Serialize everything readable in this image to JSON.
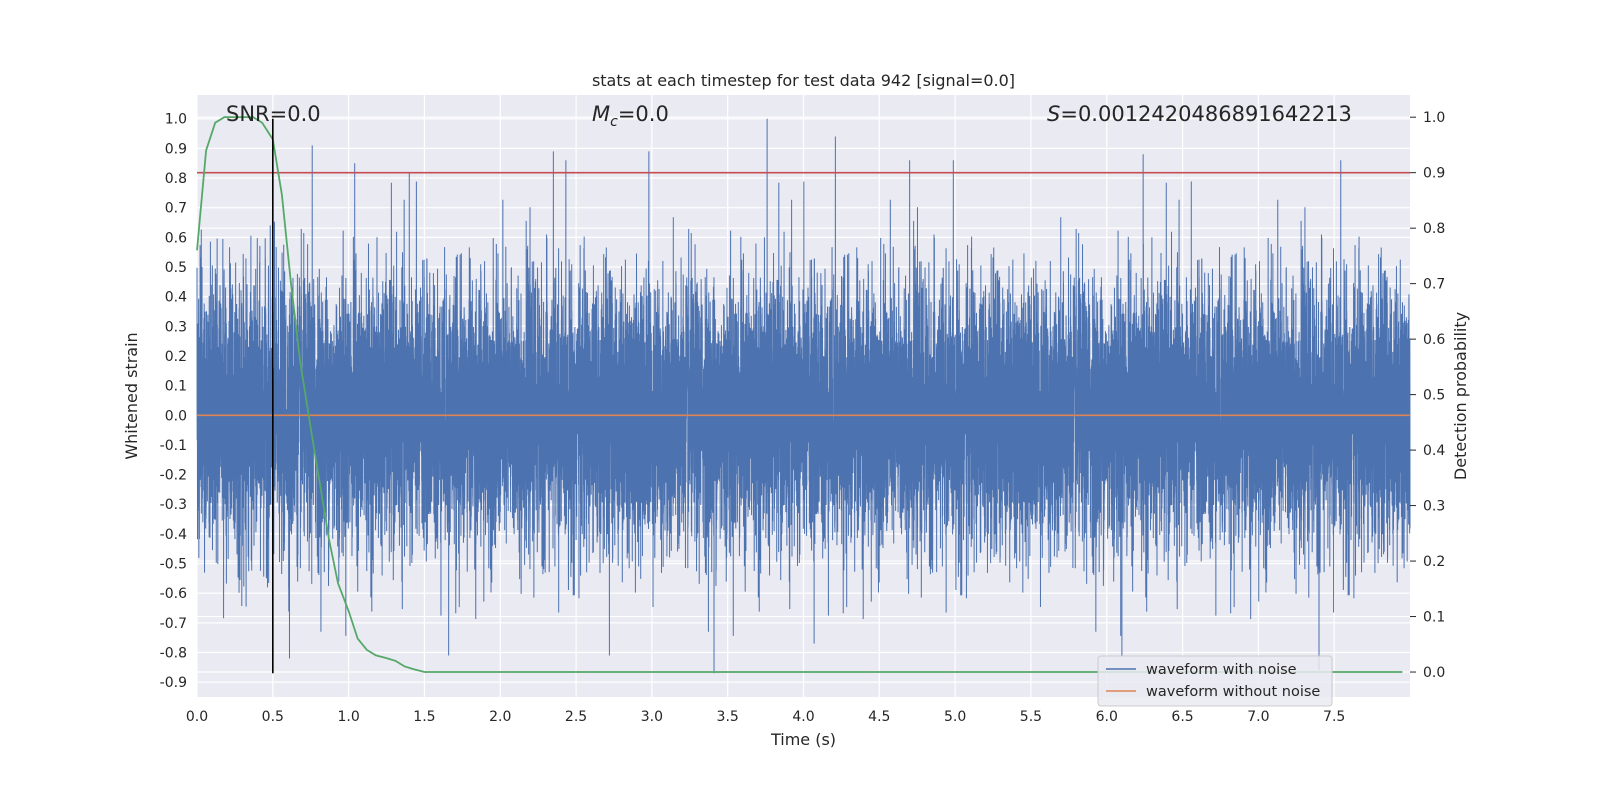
{
  "chart_data": {
    "type": "line",
    "title": "stats at each timestep for test data 942 [signal=0.0]",
    "xlabel": "Time (s)",
    "ylabel": "Whitened strain",
    "y2label": "Detection probability",
    "xlim": [
      0.0,
      8.0
    ],
    "ylim": [
      -0.95,
      1.08
    ],
    "y2lim": [
      -0.045,
      1.04
    ],
    "x_ticks": [
      "0.0",
      "0.5",
      "1.0",
      "1.5",
      "2.0",
      "2.5",
      "3.0",
      "3.5",
      "4.0",
      "4.5",
      "5.0",
      "5.5",
      "6.0",
      "6.5",
      "7.0",
      "7.5"
    ],
    "y_ticks": [
      "1.0",
      "0.9",
      "0.8",
      "0.7",
      "0.6",
      "0.5",
      "0.4",
      "0.3",
      "0.2",
      "0.1",
      "0.0",
      "-0.1",
      "-0.2",
      "-0.3",
      "-0.4",
      "-0.5",
      "-0.6",
      "-0.7",
      "-0.8",
      "-0.9"
    ],
    "y2_ticks": [
      "1.0",
      "0.9",
      "0.8",
      "0.7",
      "0.6",
      "0.5",
      "0.4",
      "0.3",
      "0.2",
      "0.1",
      "0.0"
    ],
    "grid": true,
    "legend_position": "lower-right",
    "annotations": {
      "snr": "SNR=0.0",
      "mc_symbol": "M",
      "mc_sub": "c",
      "mc_value": "=0.0",
      "s_symbol": "S",
      "s_value": "=0.001242048689164221​3"
    },
    "series": [
      {
        "name": "waveform with noise",
        "color": "#4c72b0",
        "axis": "left",
        "generated": "dense noise, 2048 samples/s over 8 s",
        "noise_sigma": 0.22,
        "peaks": [
          {
            "x": 3.76,
            "y": 1.0
          },
          {
            "x": 4.21,
            "y": 0.94
          },
          {
            "x": 0.76,
            "y": 0.91
          },
          {
            "x": 2.98,
            "y": 0.89
          },
          {
            "x": 2.35,
            "y": 0.89
          },
          {
            "x": 6.24,
            "y": 0.88
          },
          {
            "x": 4.7,
            "y": 0.86
          },
          {
            "x": 1.04,
            "y": 0.85
          },
          {
            "x": 1.4,
            "y": 0.82
          },
          {
            "x": 3.41,
            "y": -0.87
          },
          {
            "x": 7.4,
            "y": -0.86
          },
          {
            "x": 0.61,
            "y": -0.82
          },
          {
            "x": 2.72,
            "y": -0.81
          },
          {
            "x": 1.66,
            "y": -0.81
          },
          {
            "x": 6.1,
            "y": -0.81
          },
          {
            "x": 4.07,
            "y": -0.77
          },
          {
            "x": 1.92,
            "y": 0.09
          }
        ]
      },
      {
        "name": "waveform without noise",
        "color": "#dd8452",
        "axis": "left",
        "x": [
          0.0,
          8.0
        ],
        "y": [
          0.0,
          0.0
        ]
      },
      {
        "name": "",
        "color": "#55a868",
        "axis": "right",
        "x": [
          0.0,
          0.06,
          0.12,
          0.18,
          0.25,
          0.31,
          0.37,
          0.43,
          0.5,
          0.56,
          0.62,
          0.68,
          0.75,
          0.81,
          0.87,
          0.93,
          1.0,
          1.06,
          1.12,
          1.18,
          1.25,
          1.31,
          1.37,
          1.43,
          1.5,
          2.0,
          3.0,
          4.0,
          5.0,
          6.0,
          7.0,
          7.95
        ],
        "y": [
          0.76,
          0.94,
          0.99,
          1.0,
          1.0,
          1.0,
          1.0,
          0.99,
          0.96,
          0.86,
          0.7,
          0.56,
          0.44,
          0.34,
          0.24,
          0.16,
          0.11,
          0.06,
          0.04,
          0.03,
          0.025,
          0.02,
          0.01,
          0.005,
          0.0,
          0.0,
          0.0,
          0.0,
          0.0,
          0.0,
          0.0,
          0.0
        ]
      }
    ],
    "reference_lines": {
      "threshold_color": "#c44e52",
      "threshold_y2": 0.9,
      "marker_color": "#000000",
      "marker_x": 0.5,
      "marker_y_range": [
        -0.87,
        1.0
      ]
    }
  }
}
